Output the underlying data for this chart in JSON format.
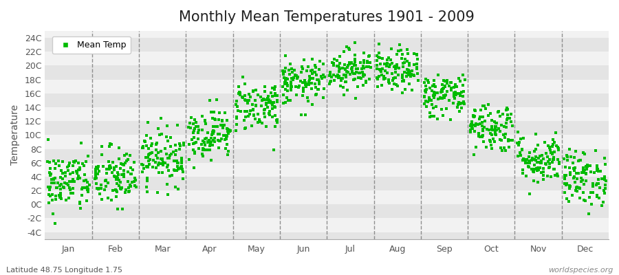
{
  "title": "Monthly Mean Temperatures 1901 - 2009",
  "ylabel": "Temperature",
  "bottom_left_label": "Latitude 48.75 Longitude 1.75",
  "bottom_right_label": "worldspecies.org",
  "dot_color": "#00bb00",
  "dot_size": 10,
  "stripe_color_light": "#f2f2f2",
  "stripe_color_dark": "#e4e4e4",
  "ytick_labels": [
    "-4C",
    "-2C",
    "0C",
    "2C",
    "4C",
    "6C",
    "8C",
    "10C",
    "12C",
    "14C",
    "16C",
    "18C",
    "20C",
    "22C",
    "24C"
  ],
  "ytick_values": [
    -4,
    -2,
    0,
    2,
    4,
    6,
    8,
    10,
    12,
    14,
    16,
    18,
    20,
    22,
    24
  ],
  "ylim": [
    -5,
    25
  ],
  "month_labels": [
    "Jan",
    "Feb",
    "Mar",
    "Apr",
    "May",
    "Jun",
    "Jul",
    "Aug",
    "Sep",
    "Oct",
    "Nov",
    "Dec"
  ],
  "month_means": [
    3.2,
    3.8,
    6.8,
    10.2,
    14.2,
    17.5,
    19.5,
    19.2,
    15.8,
    11.2,
    6.5,
    3.8
  ],
  "month_stds": [
    2.2,
    2.2,
    2.0,
    1.8,
    1.8,
    1.6,
    1.5,
    1.5,
    1.6,
    1.8,
    1.8,
    2.0
  ],
  "n_years": 109,
  "seed": 42,
  "title_fontsize": 15,
  "axis_label_fontsize": 10,
  "tick_fontsize": 9,
  "legend_fontsize": 9,
  "grid_color": "#777777",
  "grid_linewidth": 1.0,
  "grid_linestyle": "--"
}
